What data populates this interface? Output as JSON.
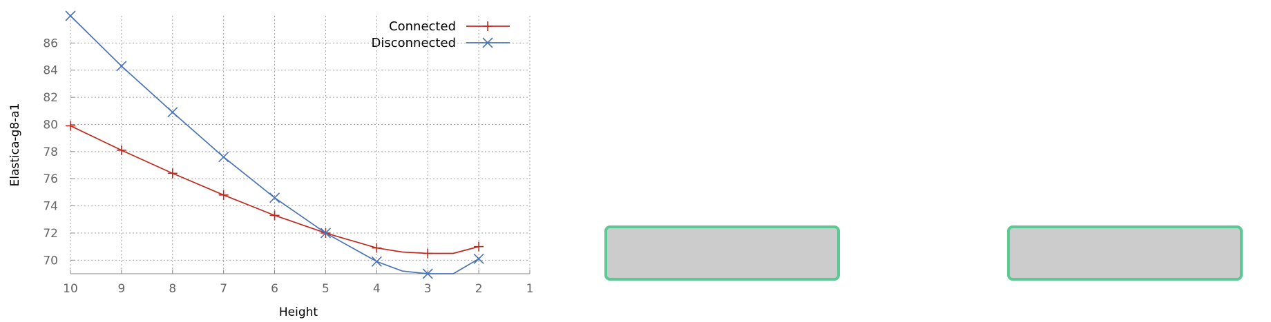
{
  "chart_data": {
    "type": "line",
    "xlabel": "Height",
    "ylabel": "Elastica-g8-a1",
    "x_reversed": true,
    "xlim": [
      10,
      1
    ],
    "ylim": [
      69,
      88
    ],
    "x_ticks": [
      10,
      9,
      8,
      7,
      6,
      5,
      4,
      3,
      2,
      1
    ],
    "y_ticks": [
      70,
      72,
      74,
      76,
      78,
      80,
      82,
      84,
      86
    ],
    "grid": true,
    "legend_position": "top-right",
    "series": [
      {
        "name": "Connected",
        "color": "#c0281e",
        "marker": "plus",
        "x": [
          10,
          9,
          8,
          7,
          6,
          5,
          4,
          3.5,
          3,
          2.5,
          2
        ],
        "y": [
          79.9,
          78.1,
          76.4,
          74.8,
          73.3,
          72.0,
          70.9,
          70.6,
          70.5,
          70.5,
          71.0
        ],
        "marked": [
          true,
          true,
          true,
          true,
          true,
          true,
          true,
          false,
          true,
          false,
          true
        ]
      },
      {
        "name": "Disconnected",
        "color": "#4a72b8",
        "marker": "cross",
        "x": [
          10,
          9,
          8,
          7,
          6,
          5,
          4,
          3.5,
          3,
          2.5,
          2
        ],
        "y": [
          88.0,
          84.3,
          80.9,
          77.6,
          74.6,
          72.0,
          69.9,
          69.2,
          69.0,
          69.0,
          70.1
        ],
        "marked": [
          true,
          true,
          true,
          true,
          true,
          true,
          true,
          false,
          true,
          false,
          true
        ]
      }
    ]
  },
  "placeholders": [
    {
      "label": ""
    },
    {
      "label": ""
    }
  ]
}
